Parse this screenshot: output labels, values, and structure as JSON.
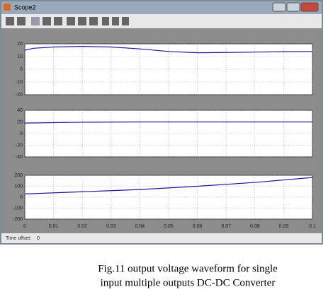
{
  "window": {
    "title": "Scope2"
  },
  "chart_data": [
    {
      "type": "line",
      "xlim": [
        0,
        0.1
      ],
      "xticks": [
        0,
        0.01,
        0.02,
        0.03,
        0.04,
        0.05,
        0.06,
        0.07,
        0.08,
        0.09,
        0.1
      ],
      "ylim": [
        -20,
        20
      ],
      "yticks": [
        -20,
        -10,
        0,
        10,
        20
      ],
      "grid": true,
      "series": [
        {
          "color": "#1a1aa0",
          "x": [
            0,
            0.003,
            0.01,
            0.02,
            0.03,
            0.04,
            0.05,
            0.06,
            0.07,
            0.08,
            0.09,
            0.1
          ],
          "values": [
            15,
            16.5,
            17.5,
            18,
            17.5,
            16,
            14,
            13,
            13.2,
            13.5,
            13.8,
            14
          ]
        }
      ]
    },
    {
      "type": "line",
      "xlim": [
        0,
        0.1
      ],
      "xticks": [
        0,
        0.01,
        0.02,
        0.03,
        0.04,
        0.05,
        0.06,
        0.07,
        0.08,
        0.09,
        0.1
      ],
      "ylim": [
        -40,
        40
      ],
      "yticks": [
        -40,
        -20,
        0,
        20,
        40
      ],
      "grid": true,
      "series": [
        {
          "color": "#1a1aa0",
          "x": [
            0,
            0.02,
            0.04,
            0.06,
            0.08,
            0.1
          ],
          "values": [
            18,
            19.5,
            20,
            20,
            20,
            20
          ]
        }
      ]
    },
    {
      "type": "line",
      "xlim": [
        0,
        0.1
      ],
      "xticks": [
        0,
        0.01,
        0.02,
        0.03,
        0.04,
        0.05,
        0.06,
        0.07,
        0.08,
        0.09,
        0.1
      ],
      "show_xtick_labels": true,
      "ylim": [
        -200,
        200
      ],
      "yticks": [
        -200,
        -100,
        0,
        100,
        200
      ],
      "grid": true,
      "series": [
        {
          "color": "#1a1aa0",
          "x": [
            0,
            0.02,
            0.04,
            0.06,
            0.08,
            0.1
          ],
          "values": [
            30,
            50,
            70,
            100,
            135,
            180
          ]
        }
      ]
    }
  ],
  "time_offset": {
    "label": "Time offset:",
    "value": "0"
  },
  "caption": [
    "Fig.11 output voltage waveform for single",
    "input multiple outputs DC-DC Converter"
  ]
}
